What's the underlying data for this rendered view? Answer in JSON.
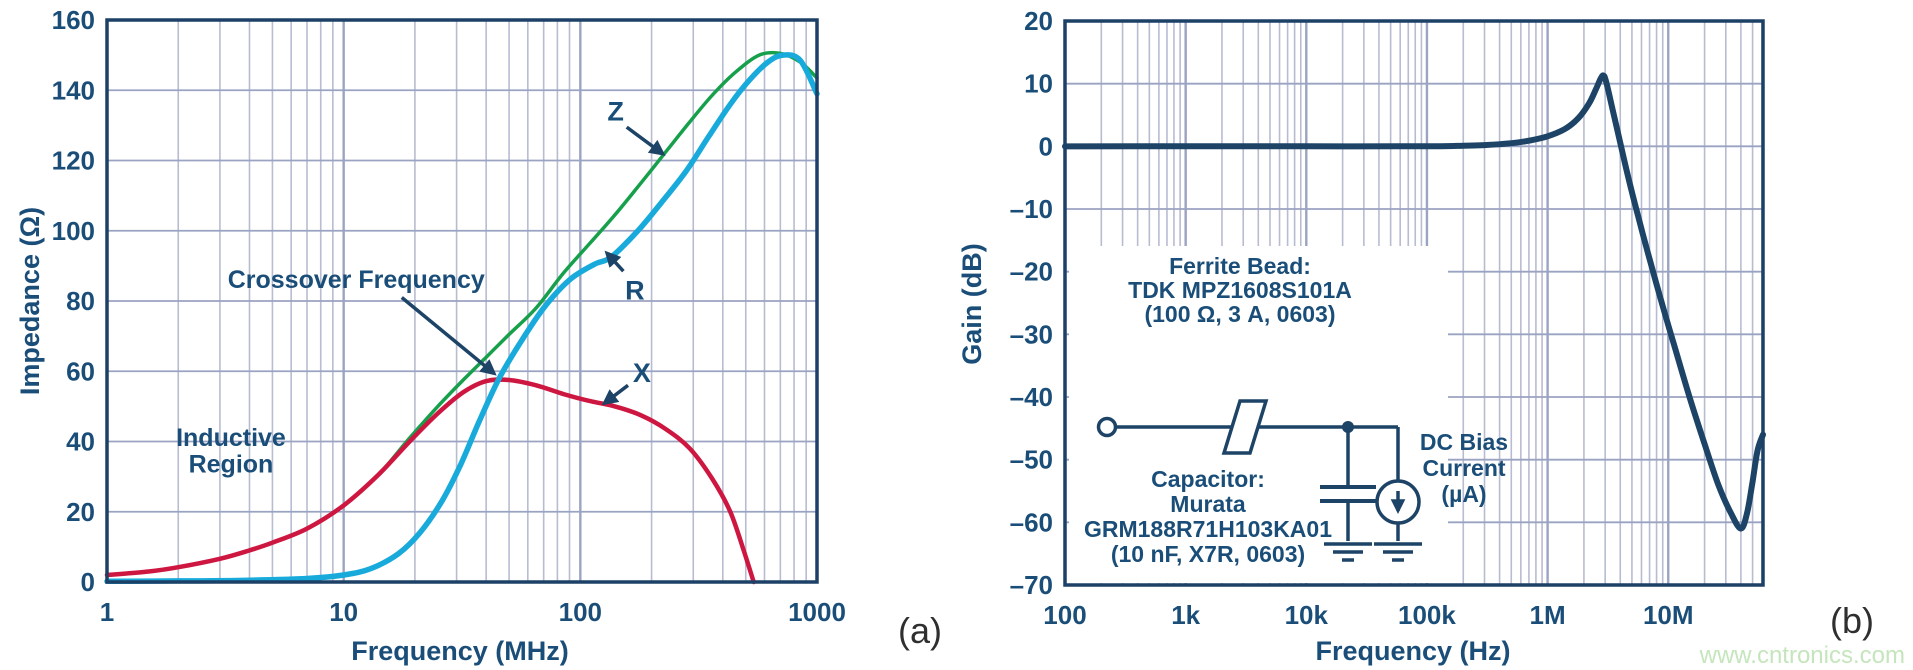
{
  "captions": {
    "a": "(a)",
    "b": "(b)"
  },
  "watermark_text": "www.cntronics.com",
  "colors": {
    "navy_text": "#1a4e78",
    "axis": "#1c4066",
    "grid_major": "#9ba3c2",
    "grid_minor": "#b7bcd1",
    "series_z_green": "#17a04b",
    "series_r_cyan": "#18aadb",
    "series_x_red": "#ce1740",
    "series_gain_navy": "#1d4467",
    "watermark_green": "#c5e5bc"
  },
  "chart_data": [
    {
      "type": "line",
      "title": "",
      "xlabel": "Frequency (MHz)",
      "ylabel": "Impedance (Ω)",
      "x_scale": "log",
      "xlim": [
        1,
        1000
      ],
      "ylim": [
        0,
        160
      ],
      "grid": true,
      "x_tick_values": [
        1,
        10,
        100,
        1000
      ],
      "x_tick_labels": [
        "1",
        "10",
        "100",
        "1000"
      ],
      "y_tick_values": [
        160,
        140,
        120,
        100,
        80,
        60,
        40,
        20,
        0
      ],
      "y_tick_labels": [
        "160",
        "140",
        "120",
        "100",
        "80",
        "60",
        "40",
        "20",
        "0"
      ],
      "series": [
        {
          "name": "Z",
          "color_key": "series_z_green",
          "width": 3.5,
          "points": [
            [
              1,
              2
            ],
            [
              1.5,
              3
            ],
            [
              2,
              4.2
            ],
            [
              3,
              6.6
            ],
            [
              4,
              9
            ],
            [
              5,
              11.2
            ],
            [
              7,
              15.2
            ],
            [
              10,
              21.8
            ],
            [
              14,
              30.5
            ],
            [
              19,
              41
            ],
            [
              25,
              50
            ],
            [
              32,
              57.5
            ],
            [
              40,
              64
            ],
            [
              50,
              70.5
            ],
            [
              65,
              78
            ],
            [
              85,
              88
            ],
            [
              110,
              96.5
            ],
            [
              140,
              104.5
            ],
            [
              180,
              113.5
            ],
            [
              230,
              122.5
            ],
            [
              290,
              131
            ],
            [
              360,
              138.5
            ],
            [
              450,
              145
            ],
            [
              570,
              150
            ],
            [
              700,
              150.5
            ],
            [
              850,
              148
            ],
            [
              1000,
              143.5
            ]
          ]
        },
        {
          "name": "X",
          "color_key": "series_x_red",
          "width": 4.5,
          "points": [
            [
              1,
              2
            ],
            [
              1.5,
              3
            ],
            [
              2,
              4.2
            ],
            [
              3,
              6.6
            ],
            [
              4,
              9
            ],
            [
              5,
              11.2
            ],
            [
              7,
              15.2
            ],
            [
              10,
              21.8
            ],
            [
              14,
              30.5
            ],
            [
              19,
              40
            ],
            [
              25,
              48
            ],
            [
              32,
              54
            ],
            [
              40,
              57.2
            ],
            [
              50,
              57.5
            ],
            [
              65,
              56
            ],
            [
              85,
              53.5
            ],
            [
              110,
              51.5
            ],
            [
              140,
              50
            ],
            [
              180,
              47.5
            ],
            [
              230,
              43.5
            ],
            [
              290,
              38
            ],
            [
              360,
              29.5
            ],
            [
              430,
              20
            ],
            [
              490,
              9
            ],
            [
              540,
              0
            ]
          ]
        },
        {
          "name": "R",
          "color_key": "series_r_cyan",
          "width": 5.5,
          "points": [
            [
              1,
              0.2
            ],
            [
              2,
              0.3
            ],
            [
              4,
              0.5
            ],
            [
              7,
              1
            ],
            [
              10,
              2
            ],
            [
              13,
              3.8
            ],
            [
              17,
              8
            ],
            [
              21,
              14
            ],
            [
              26,
              23
            ],
            [
              31,
              33
            ],
            [
              37,
              45
            ],
            [
              45,
              57.5
            ],
            [
              55,
              67.5
            ],
            [
              70,
              78
            ],
            [
              90,
              86
            ],
            [
              115,
              90.5
            ],
            [
              135,
              92.5
            ],
            [
              175,
              100
            ],
            [
              220,
              108
            ],
            [
              280,
              117
            ],
            [
              350,
              127
            ],
            [
              430,
              136
            ],
            [
              520,
              143
            ],
            [
              620,
              148
            ],
            [
              720,
              150
            ],
            [
              850,
              148.5
            ],
            [
              1000,
              139
            ]
          ]
        }
      ],
      "annotations": [
        {
          "text": "Crossover Frequency",
          "name": "crossover-frequency-label",
          "f": 11.3,
          "ohm": 86,
          "size": 25,
          "arrow": {
            "f1": 17.6,
            "ohm1": 81,
            "f2": 43,
            "ohm2": 59.5
          }
        },
        {
          "text": "Inductive",
          "name": "inductive-region-label-line1",
          "f": 3.34,
          "ohm": 41,
          "size": 25
        },
        {
          "text": "Region",
          "name": "inductive-region-label-line2",
          "f": 3.34,
          "ohm": 33.5,
          "size": 25
        },
        {
          "text": "Z",
          "name": "curve-label-z",
          "f": 141,
          "ohm": 134,
          "size": 27,
          "arrow": {
            "f1": 157,
            "ohm1": 129.5,
            "f2": 222,
            "ohm2": 122
          }
        },
        {
          "text": "R",
          "name": "curve-label-r",
          "f": 170,
          "ohm": 83,
          "size": 27,
          "arrow": {
            "f1": 152,
            "ohm1": 88.5,
            "f2": 130,
            "ohm2": 93.5
          }
        },
        {
          "text": "X",
          "name": "curve-label-x",
          "f": 182,
          "ohm": 59.5,
          "size": 27,
          "arrow": {
            "f1": 159,
            "ohm1": 56,
            "f2": 127,
            "ohm2": 51
          }
        }
      ]
    },
    {
      "type": "line",
      "title": "",
      "xlabel": "Frequency (Hz)",
      "ylabel": "Gain (dB)",
      "x_scale": "log",
      "xlim": [
        100,
        61000000
      ],
      "ylim": [
        -70,
        20
      ],
      "grid": true,
      "x_tick_values": [
        100,
        1000,
        10000,
        100000,
        1000000,
        10000000
      ],
      "x_tick_labels": [
        "100",
        "1k",
        "10k",
        "100k",
        "1M",
        "10M"
      ],
      "y_tick_values": [
        20,
        10,
        0,
        -10,
        -20,
        -30,
        -40,
        -50,
        -60,
        -70
      ],
      "y_tick_labels": [
        "20",
        "10",
        "0",
        "–10",
        "–20",
        "–30",
        "–40",
        "–50",
        "–60",
        "–70"
      ],
      "series": [
        {
          "name": "Gain",
          "color_key": "series_gain_navy",
          "width": 6,
          "points": [
            [
              100,
              0
            ],
            [
              1000,
              0
            ],
            [
              10000,
              0
            ],
            [
              100000,
              0
            ],
            [
              200000,
              0.1
            ],
            [
              300000,
              0.2
            ],
            [
              500000,
              0.5
            ],
            [
              700000,
              0.9
            ],
            [
              1000000,
              1.6
            ],
            [
              1400000,
              2.8
            ],
            [
              1800000,
              4.5
            ],
            [
              2200000,
              6.8
            ],
            [
              2500000,
              9
            ],
            [
              2750000,
              10.8
            ],
            [
              2900000,
              11.3
            ],
            [
              3050000,
              10.4
            ],
            [
              3400000,
              6.5
            ],
            [
              3900000,
              1.5
            ],
            [
              4600000,
              -4.5
            ],
            [
              5600000,
              -11
            ],
            [
              7000000,
              -18
            ],
            [
              9000000,
              -25.5
            ],
            [
              11500000,
              -32.5
            ],
            [
              15000000,
              -40
            ],
            [
              20000000,
              -47.5
            ],
            [
              26000000,
              -54
            ],
            [
              33000000,
              -58.5
            ],
            [
              40000000,
              -61
            ],
            [
              45000000,
              -58.5
            ],
            [
              50000000,
              -53.5
            ],
            [
              55000000,
              -48.5
            ],
            [
              61000000,
              -46
            ]
          ]
        }
      ]
    }
  ],
  "figure_a": {
    "xlabel": "Frequency (MHz)",
    "ylabel": "Impedance (Ω)"
  },
  "figure_b": {
    "xlabel": "Frequency (Hz)",
    "ylabel": "Gain (dB)",
    "inset": {
      "ferrite_lines": [
        "Ferrite Bead:",
        "TDK MPZ1608S101A",
        "(100 Ω, 3 A, 0603)"
      ],
      "capacitor_lines": [
        "Capacitor:",
        "Murata",
        "GRM188R71H103KA01",
        "(10 nF, X7R, 0603)"
      ],
      "dc_bias_lines": [
        "DC Bias",
        "Current",
        "(µA)"
      ]
    }
  }
}
